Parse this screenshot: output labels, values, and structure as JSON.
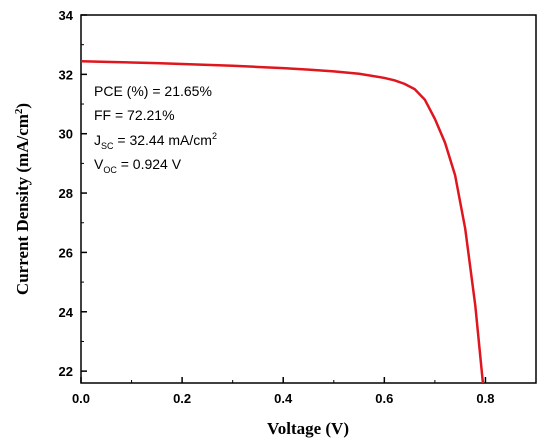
{
  "chart_data": {
    "type": "line",
    "xlabel": "Voltage (V)",
    "ylabel": "Current Density (mA/cm",
    "ylabel_sup": "2",
    "ylabel_tail": ")",
    "xlim": [
      0.0,
      0.9
    ],
    "ylim": [
      21.6,
      34.0
    ],
    "xticks": [
      0.0,
      0.2,
      0.4,
      0.6,
      0.8
    ],
    "xtick_labels": [
      "0.0",
      "0.2",
      "0.4",
      "0.6",
      "0.8"
    ],
    "yticks": [
      22,
      24,
      26,
      28,
      30,
      32,
      34
    ],
    "ytick_labels": [
      "22",
      "24",
      "26",
      "28",
      "30",
      "32",
      "34"
    ],
    "grid": false,
    "series": [
      {
        "color": "#e0161e",
        "x": [
          0.0,
          0.05,
          0.1,
          0.15,
          0.2,
          0.25,
          0.3,
          0.35,
          0.4,
          0.45,
          0.5,
          0.55,
          0.6,
          0.62,
          0.64,
          0.66,
          0.68,
          0.7,
          0.72,
          0.74,
          0.76,
          0.78,
          0.795
        ],
        "y": [
          32.44,
          32.42,
          32.4,
          32.38,
          32.35,
          32.32,
          32.29,
          32.25,
          32.21,
          32.16,
          32.1,
          32.02,
          31.88,
          31.8,
          31.68,
          31.5,
          31.15,
          30.5,
          29.7,
          28.6,
          26.8,
          24.2,
          21.6
        ]
      }
    ],
    "annotations": {
      "pce_label": "PCE (%) = 21.65%",
      "ff_label": "FF = 72.21%",
      "jsc_main": "J",
      "jsc_sub": "SC",
      "jsc_value": " = 32.44 mA/cm",
      "jsc_sup": "2",
      "voc_main": "V",
      "voc_sub": "OC",
      "voc_value": " = 0.924 V"
    }
  }
}
